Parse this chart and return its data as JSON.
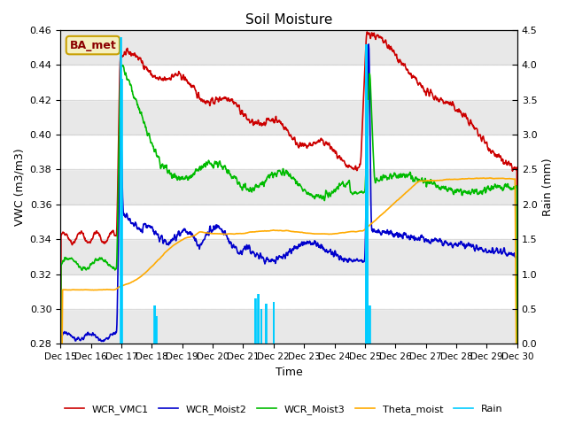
{
  "title": "Soil Moisture",
  "xlabel": "Time",
  "ylabel_left": "VWC (m3/m3)",
  "ylabel_right": "Rain (mm)",
  "ylim_left": [
    0.28,
    0.46
  ],
  "ylim_right": [
    0.0,
    4.5
  ],
  "yticks_left": [
    0.28,
    0.3,
    0.32,
    0.34,
    0.36,
    0.38,
    0.4,
    0.42,
    0.44,
    0.46
  ],
  "yticks_right": [
    0.0,
    0.5,
    1.0,
    1.5,
    2.0,
    2.5,
    3.0,
    3.5,
    4.0,
    4.5
  ],
  "xtick_labels": [
    "Dec 15",
    "Dec 16",
    "Dec 17",
    "Dec 18",
    "Dec 19",
    "Dec 20",
    "Dec 21",
    "Dec 22",
    "Dec 23",
    "Dec 24",
    "Dec 25",
    "Dec 26",
    "Dec 27",
    "Dec 28",
    "Dec 29",
    "Dec 30"
  ],
  "colors": {
    "WCR_VMC1": "#cc0000",
    "WCR_Moist2": "#0000cc",
    "WCR_Moist3": "#00bb00",
    "Theta_moist": "#ffaa00",
    "Rain": "#00ccff"
  },
  "legend_label": "BA_met",
  "band_colors": [
    "#e8e8e8",
    "#ffffff"
  ],
  "line_width": 1.2
}
